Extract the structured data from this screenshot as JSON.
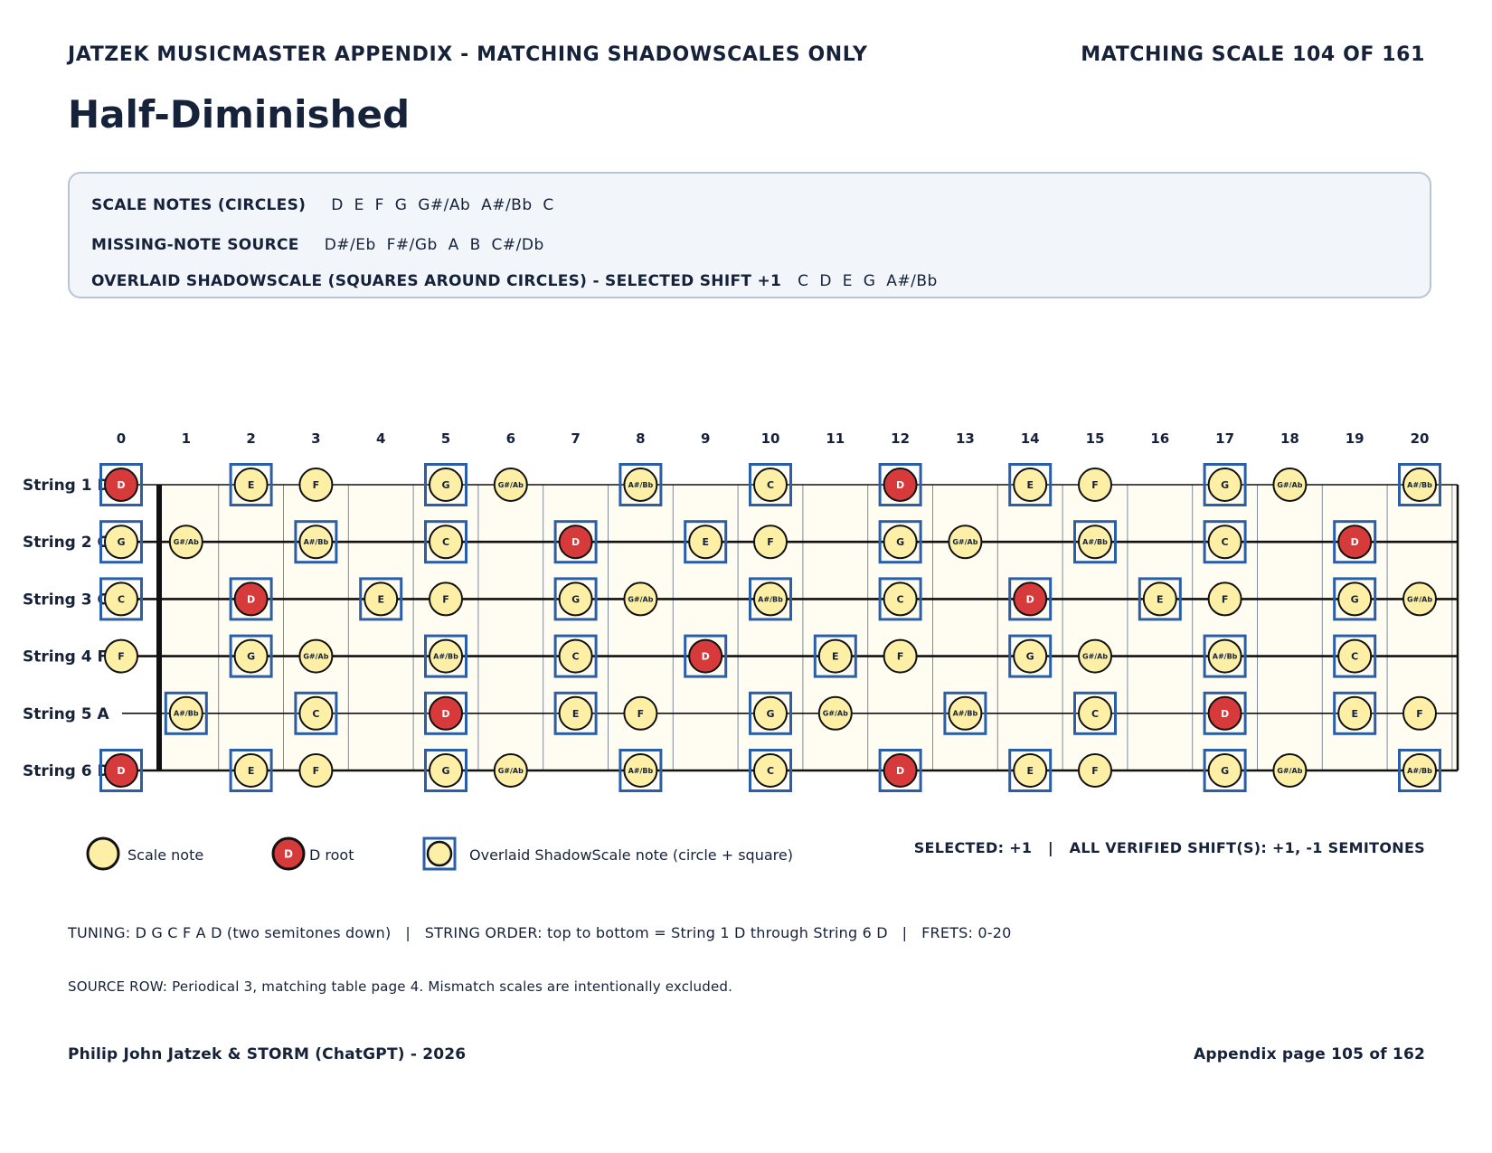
{
  "header": {
    "left": "JATZEK MUSICMASTER APPENDIX - MATCHING SHADOWSCALES ONLY",
    "right": "MATCHING SCALE 104 OF 161"
  },
  "title": "Half-Diminished",
  "info": {
    "scale_notes_label": "SCALE NOTES (CIRCLES)",
    "scale_notes": "D  E  F  G  G#/Ab  A#/Bb  C",
    "missing_label": "MISSING-NOTE SOURCE",
    "missing_notes": "D#/Eb  F#/Gb  A  B  C#/Db",
    "overlay_label": "OVERLAID SHADOWSCALE (SQUARES AROUND CIRCLES) - SELECTED SHIFT +1",
    "overlay_notes": "C  D  E  G  A#/Bb"
  },
  "fretboard": {
    "fret_numbers": [
      "0",
      "1",
      "2",
      "3",
      "4",
      "5",
      "6",
      "7",
      "8",
      "9",
      "10",
      "11",
      "12",
      "13",
      "14",
      "15",
      "16",
      "17",
      "18",
      "19",
      "20"
    ],
    "strings": [
      {
        "label": "String 1 D",
        "open": "D",
        "notes": [
          "D",
          null,
          "E",
          "F",
          null,
          "G",
          "G#/Ab",
          null,
          "A#/Bb",
          null,
          "C",
          null,
          "D",
          null,
          "E",
          "F",
          null,
          "G",
          "G#/Ab",
          null,
          "A#/Bb"
        ]
      },
      {
        "label": "String 2 G",
        "open": "G",
        "notes": [
          "G",
          "G#/Ab",
          null,
          "A#/Bb",
          null,
          "C",
          null,
          "D",
          null,
          "E",
          "F",
          null,
          "G",
          "G#/Ab",
          null,
          "A#/Bb",
          null,
          "C",
          null,
          "D",
          null
        ]
      },
      {
        "label": "String 3 C",
        "open": "C",
        "notes": [
          "C",
          null,
          "D",
          null,
          "E",
          "F",
          null,
          "G",
          "G#/Ab",
          null,
          "A#/Bb",
          null,
          "C",
          null,
          "D",
          null,
          "E",
          "F",
          null,
          "G",
          "G#/Ab"
        ]
      },
      {
        "label": "String 4 F",
        "open": "F",
        "notes": [
          "F",
          null,
          "G",
          "G#/Ab",
          null,
          "A#/Bb",
          null,
          "C",
          null,
          "D",
          null,
          "E",
          "F",
          null,
          "G",
          "G#/Ab",
          null,
          "A#/Bb",
          null,
          "C",
          null
        ]
      },
      {
        "label": "String 5 A",
        "open": "A",
        "notes": [
          null,
          "A#/Bb",
          null,
          "C",
          null,
          "D",
          null,
          "E",
          "F",
          null,
          "G",
          "G#/Ab",
          null,
          "A#/Bb",
          null,
          "C",
          null,
          "D",
          null,
          "E",
          "F"
        ]
      },
      {
        "label": "String 6 D",
        "open": "D",
        "notes": [
          "D",
          null,
          "E",
          "F",
          null,
          "G",
          "G#/Ab",
          null,
          "A#/Bb",
          null,
          "C",
          null,
          "D",
          null,
          "E",
          "F",
          null,
          "G",
          "G#/Ab",
          null,
          "A#/Bb"
        ]
      }
    ],
    "root_note": "D",
    "shadow_notes": [
      "C",
      "D",
      "E",
      "G",
      "A#/Bb"
    ],
    "colors": {
      "scale_fill": "#fdf0a6",
      "root_fill": "#d63a3a",
      "square_stroke": "#2a5ea8",
      "board_fill": "#fffdf2",
      "fret_line": "#7f8aa0",
      "text": "#16213a"
    }
  },
  "legend": {
    "scale_note": "Scale note",
    "root": "D root",
    "root_glyph": "D",
    "overlay": "Overlaid ShadowScale note (circle + square)",
    "status": "SELECTED: +1   |   ALL VERIFIED SHIFT(S): +1, -1 SEMITONES"
  },
  "tuning_line": "TUNING: D G C F A D (two semitones down)   |   STRING ORDER: top to bottom = String 1 D through String 6 D   |   FRETS: 0-20",
  "source_line": "SOURCE ROW: Periodical 3, matching table page 4. Mismatch scales are intentionally excluded.",
  "footer": {
    "left": "Philip John Jatzek & STORM (ChatGPT) - 2026",
    "right": "Appendix page 105 of 162"
  }
}
